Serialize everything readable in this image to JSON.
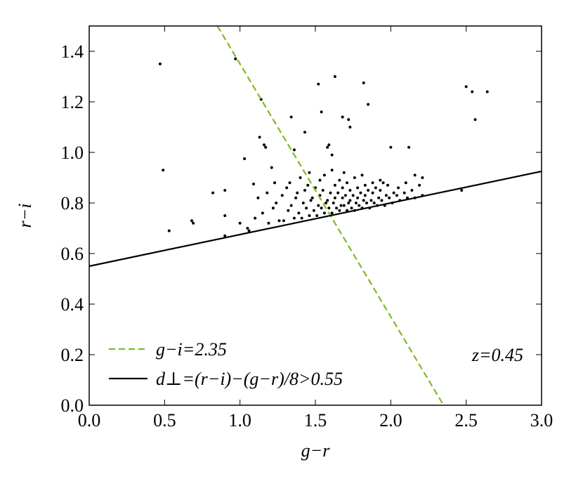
{
  "chart_data": {
    "type": "scatter",
    "xlabel": "g−r",
    "ylabel": "r−i",
    "annotation": "z=0.45",
    "xlim": [
      0,
      3
    ],
    "ylim": [
      0,
      1.5
    ],
    "xticks": [
      {
        "value": 0,
        "label": "0.0"
      },
      0.5,
      {
        "value": 1,
        "label": "1.0"
      },
      1.5,
      {
        "value": 2,
        "label": "2.0"
      },
      2.5,
      {
        "value": 3,
        "label": "3.0"
      }
    ],
    "yticks": [
      {
        "value": 0,
        "label": "0.0"
      },
      0.2,
      0.4,
      0.6,
      0.8,
      {
        "value": 1,
        "label": "1.0"
      },
      1.2,
      1.4
    ],
    "legend": "lower left",
    "series": [
      {
        "style": "points",
        "color": "#000000",
        "x": [
          0.47,
          0.49,
          0.53,
          0.68,
          0.69,
          0.82,
          0.9,
          0.9,
          0.9,
          0.97,
          1.03,
          1.06,
          1.09,
          1.13,
          1.14,
          1.16,
          1.17,
          1.21,
          1.23,
          1.34,
          1.36,
          1.43,
          1.52,
          1.54,
          1.59,
          1.58,
          1.61,
          1.63,
          1.68,
          1.72,
          1.73,
          1.82,
          1.85,
          2.0,
          2.12,
          2.16,
          2.21,
          2.5,
          2.54,
          2.64,
          2.56,
          2.47,
          1.05,
          1.1,
          1.15,
          1.12,
          1.0,
          1.19,
          1.22,
          1.18,
          1.26,
          1.24,
          1.29,
          1.32,
          1.28,
          1.31,
          1.36,
          1.34,
          1.37,
          1.33,
          1.41,
          1.39,
          1.42,
          1.38,
          1.4,
          1.46,
          1.44,
          1.47,
          1.43,
          1.45,
          1.46,
          1.51,
          1.49,
          1.52,
          1.48,
          1.5,
          1.53,
          1.56,
          1.54,
          1.57,
          1.53,
          1.55,
          1.56,
          1.61,
          1.59,
          1.62,
          1.58,
          1.6,
          1.63,
          1.61,
          1.66,
          1.64,
          1.67,
          1.63,
          1.65,
          1.68,
          1.66,
          1.71,
          1.69,
          1.72,
          1.68,
          1.7,
          1.73,
          1.71,
          1.69,
          1.76,
          1.74,
          1.77,
          1.73,
          1.75,
          1.78,
          1.76,
          1.81,
          1.79,
          1.82,
          1.78,
          1.8,
          1.83,
          1.81,
          1.86,
          1.84,
          1.87,
          1.83,
          1.85,
          1.88,
          1.91,
          1.89,
          1.92,
          1.88,
          1.9,
          1.93,
          1.96,
          1.94,
          1.97,
          1.93,
          1.95,
          2.01,
          1.99,
          2.02,
          1.98,
          2.06,
          2.04,
          2.05,
          2.11,
          2.09,
          2.1,
          2.16,
          2.14,
          2.21,
          2.19
        ],
        "values": [
          1.35,
          0.93,
          0.69,
          0.73,
          0.72,
          0.84,
          0.85,
          0.75,
          0.67,
          1.37,
          0.975,
          0.69,
          0.875,
          1.06,
          1.21,
          1.03,
          1.02,
          0.94,
          0.88,
          1.14,
          1.01,
          1.08,
          1.27,
          1.16,
          1.03,
          1.02,
          0.99,
          1.3,
          1.14,
          1.13,
          1.1,
          1.275,
          1.19,
          1.02,
          1.02,
          0.91,
          0.9,
          1.26,
          1.24,
          1.24,
          1.13,
          0.85,
          0.7,
          0.74,
          0.76,
          0.82,
          0.72,
          0.72,
          0.78,
          0.84,
          0.73,
          0.8,
          0.73,
          0.77,
          0.83,
          0.86,
          0.74,
          0.79,
          0.82,
          0.88,
          0.74,
          0.76,
          0.8,
          0.84,
          0.9,
          0.75,
          0.78,
          0.81,
          0.85,
          0.87,
          0.92,
          0.75,
          0.77,
          0.79,
          0.82,
          0.86,
          0.89,
          0.76,
          0.78,
          0.8,
          0.83,
          0.85,
          0.91,
          0.76,
          0.78,
          0.8,
          0.81,
          0.84,
          0.87,
          0.93,
          0.77,
          0.78,
          0.79,
          0.82,
          0.84,
          0.86,
          0.89,
          0.77,
          0.79,
          0.8,
          0.82,
          0.83,
          0.85,
          0.88,
          0.92,
          0.77,
          0.78,
          0.8,
          0.81,
          0.83,
          0.86,
          0.9,
          0.78,
          0.79,
          0.81,
          0.82,
          0.84,
          0.87,
          0.91,
          0.78,
          0.8,
          0.81,
          0.83,
          0.85,
          0.88,
          0.79,
          0.8,
          0.82,
          0.84,
          0.86,
          0.89,
          0.79,
          0.81,
          0.83,
          0.85,
          0.88,
          0.8,
          0.82,
          0.84,
          0.87,
          0.81,
          0.83,
          0.86,
          0.82,
          0.84,
          0.88,
          0.82,
          0.85,
          0.83,
          0.87
        ]
      },
      {
        "name": "g−i=2.35",
        "style": "line",
        "dashed": true,
        "color": "#7fb925",
        "x": [
          0.85,
          2.35
        ],
        "values": [
          1.5,
          0
        ]
      },
      {
        "name": "d⊥=(r−i)−(g−r)/8>0.55",
        "style": "line",
        "dashed": false,
        "color": "#000000",
        "x": [
          0,
          3
        ],
        "values": [
          0.55,
          0.925
        ]
      }
    ]
  }
}
